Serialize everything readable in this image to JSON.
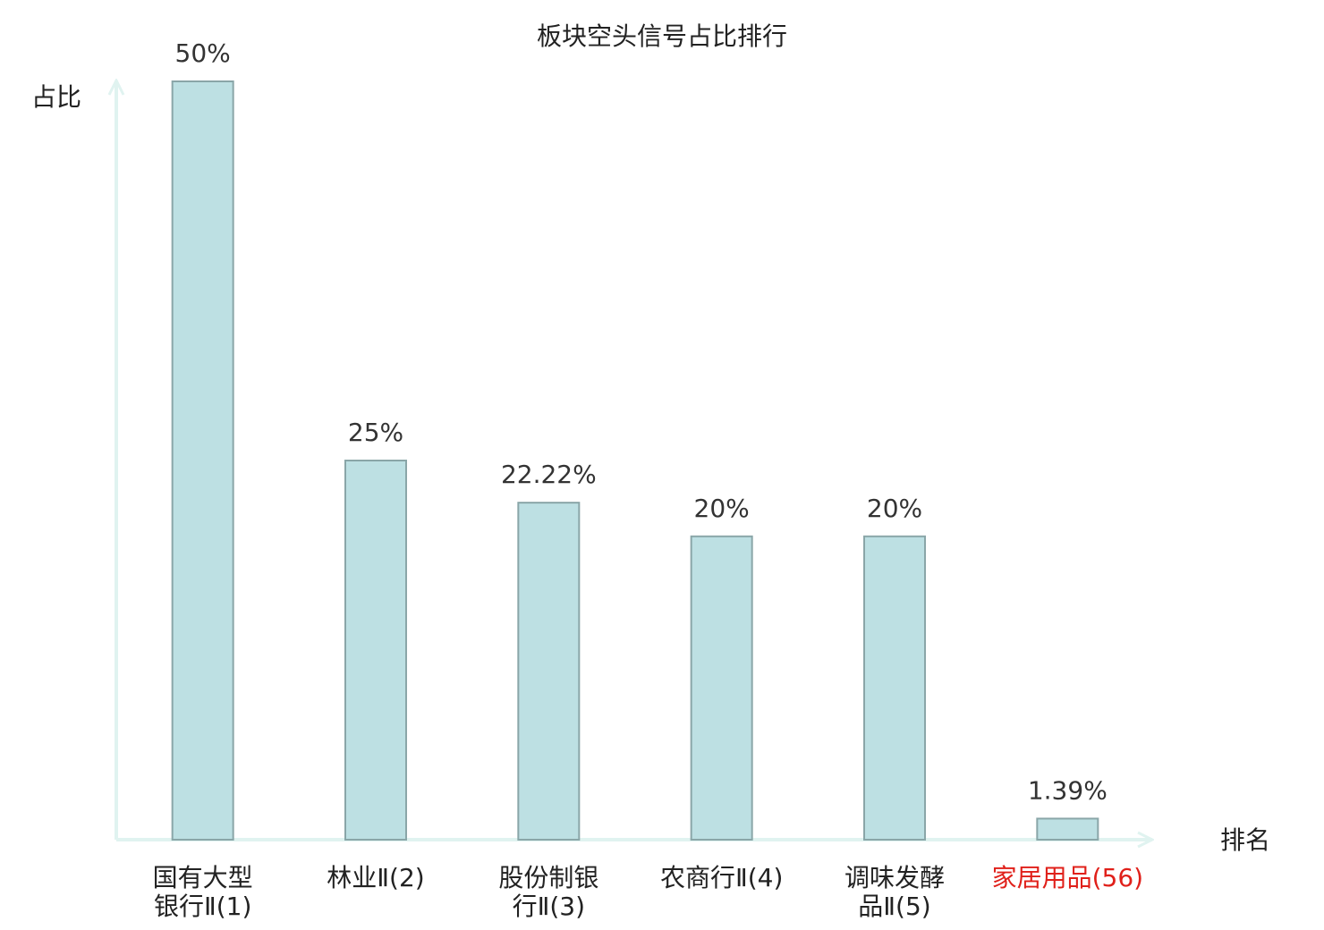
{
  "chart_data": {
    "type": "bar",
    "title": "板块空头信号占比排行",
    "y_label": "占比",
    "x_label": "排名",
    "categories": [
      [
        "国有大型",
        "银行Ⅱ(1)"
      ],
      [
        "林业Ⅱ(2)"
      ],
      [
        "股份制银",
        "行Ⅱ(3)"
      ],
      [
        "农商行Ⅱ(4)"
      ],
      [
        "调味发酵",
        "品Ⅱ(5)"
      ],
      [
        "家居用品(56)"
      ]
    ],
    "category_colors": [
      "#222222",
      "#222222",
      "#222222",
      "#222222",
      "#222222",
      "#e0201a"
    ],
    "values": [
      50,
      25,
      22.22,
      20,
      20,
      1.39
    ],
    "value_labels": [
      "50%",
      "25%",
      "22.22%",
      "20%",
      "20%",
      "1.39%"
    ],
    "color": "#bde0e3",
    "edge_color": "#8aa6a8",
    "ylim": [
      0,
      50
    ]
  }
}
